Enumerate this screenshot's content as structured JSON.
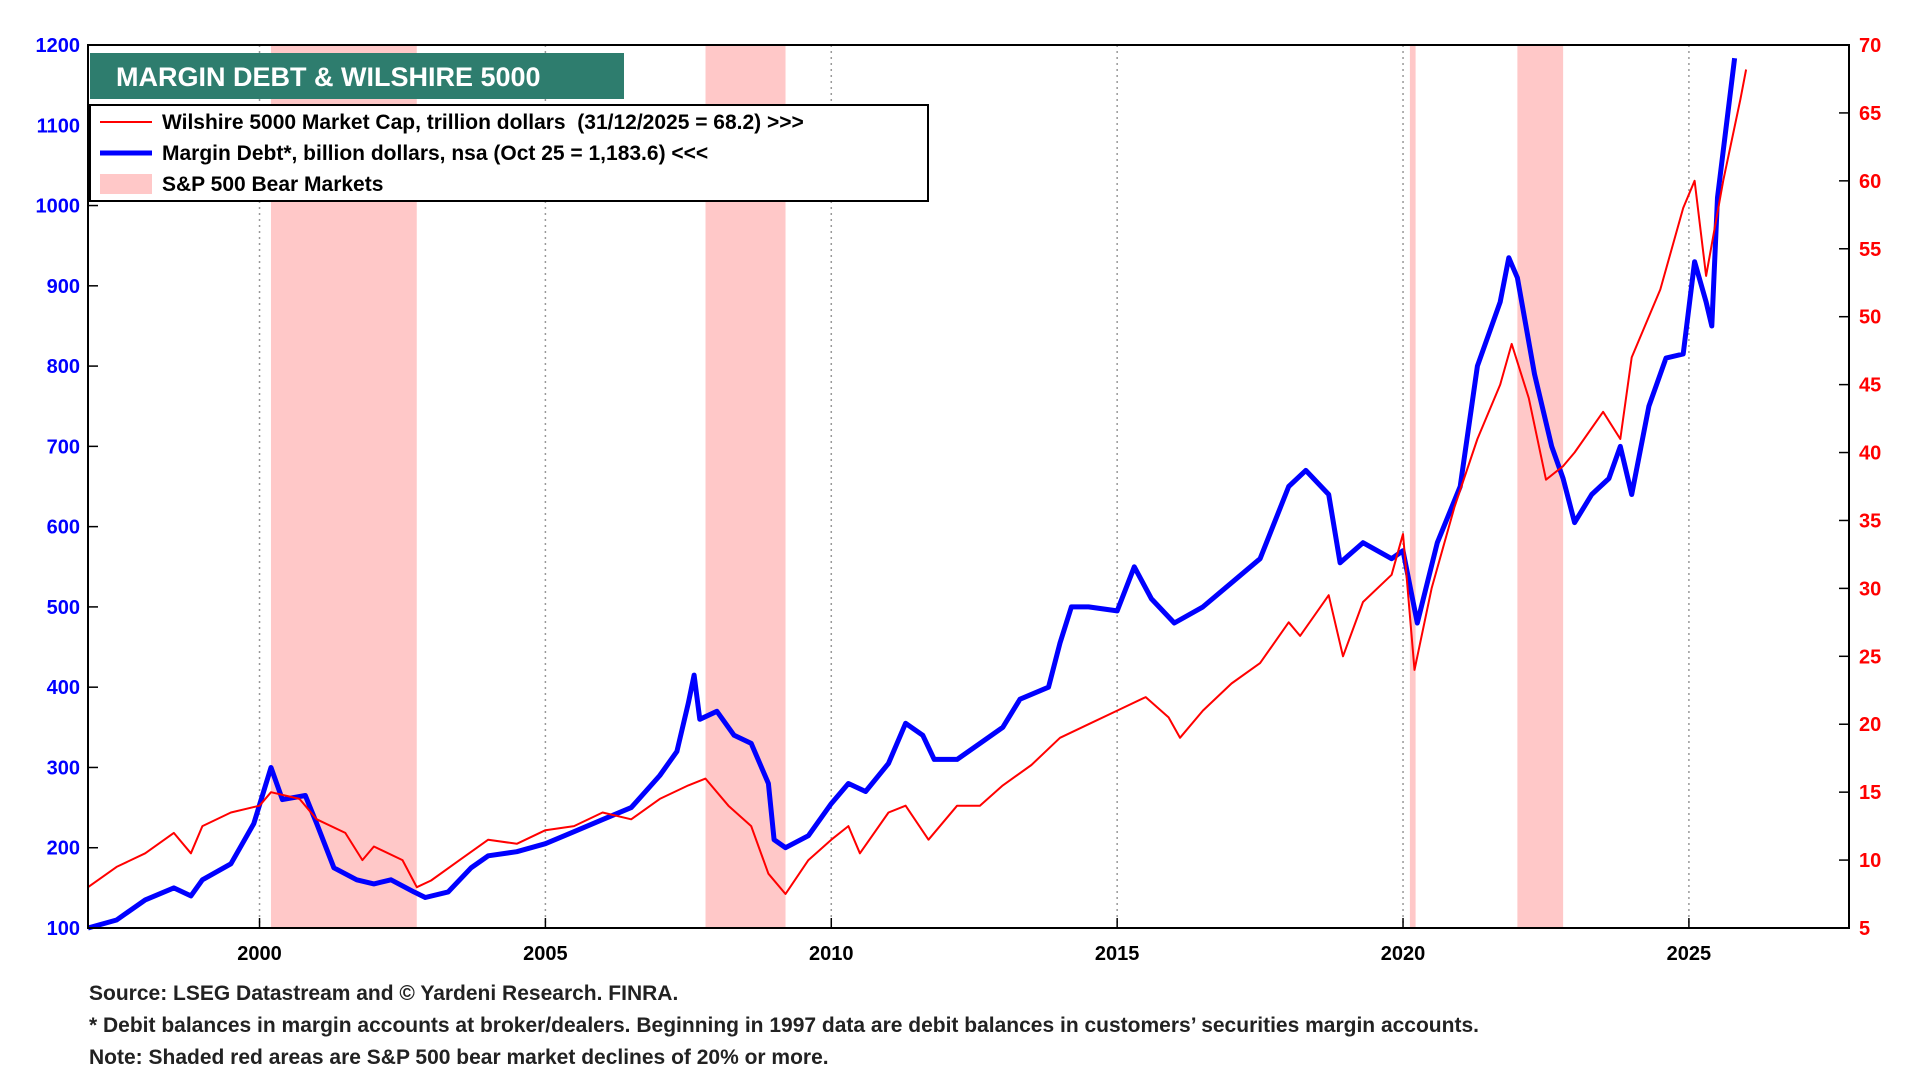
{
  "chart_data": {
    "type": "line",
    "title": "MARGIN DEBT & WILSHIRE 5000",
    "xlim": [
      1997,
      2027.8
    ],
    "xticks": [
      2000,
      2005,
      2010,
      2015,
      2020,
      2025
    ],
    "ylim": [
      100,
      1200
    ],
    "yticks": [
      100,
      200,
      300,
      400,
      500,
      600,
      700,
      800,
      900,
      1000,
      1100,
      1200
    ],
    "y2lim": [
      5,
      70
    ],
    "y2ticks": [
      5,
      10,
      15,
      20,
      25,
      30,
      35,
      40,
      45,
      50,
      55,
      60,
      65,
      70
    ],
    "grid": "x",
    "bear_markets": {
      "name": "S&P 500 Bear Markets",
      "color": "#ffc8c8",
      "ranges": [
        [
          2000.2,
          2002.75
        ],
        [
          2007.8,
          2009.2
        ],
        [
          2020.12,
          2020.22
        ],
        [
          2022.0,
          2022.8
        ]
      ]
    },
    "series": [
      {
        "name": "Wilshire 5000 Market Cap, trillion dollars  (31/12/2025 = 68.2) >>>",
        "color": "#ff0000",
        "axis": "y2",
        "x": [
          1997.0,
          1997.5,
          1998.0,
          1998.5,
          1998.8,
          1999.0,
          1999.5,
          2000.0,
          2000.2,
          2000.7,
          2001.0,
          2001.5,
          2001.8,
          2002.0,
          2002.5,
          2002.75,
          2003.0,
          2003.5,
          2004.0,
          2004.5,
          2005.0,
          2005.5,
          2006.0,
          2006.5,
          2007.0,
          2007.5,
          2007.8,
          2008.2,
          2008.6,
          2008.9,
          2009.2,
          2009.6,
          2010.0,
          2010.3,
          2010.5,
          2011.0,
          2011.3,
          2011.7,
          2012.2,
          2012.6,
          2013.0,
          2013.5,
          2014.0,
          2014.5,
          2015.0,
          2015.5,
          2015.9,
          2016.1,
          2016.5,
          2017.0,
          2017.5,
          2018.0,
          2018.2,
          2018.7,
          2018.95,
          2019.3,
          2019.8,
          2020.0,
          2020.2,
          2020.5,
          2020.9,
          2021.3,
          2021.7,
          2021.9,
          2022.2,
          2022.5,
          2022.8,
          2023.0,
          2023.5,
          2023.8,
          2024.0,
          2024.5,
          2024.9,
          2025.1,
          2025.3,
          2025.6,
          2025.9,
          2026.0
        ],
        "values": [
          8,
          9.5,
          10.5,
          12,
          10.5,
          12.5,
          13.5,
          14,
          15,
          14.5,
          13,
          12,
          10,
          11,
          10,
          8,
          8.5,
          10,
          11.5,
          11.2,
          12.2,
          12.5,
          13.5,
          13,
          14.5,
          15.5,
          16,
          14,
          12.5,
          9,
          7.5,
          10,
          11.5,
          12.5,
          10.5,
          13.5,
          14,
          11.5,
          14,
          14,
          15.5,
          17,
          19,
          20,
          21,
          22,
          20.5,
          19,
          21,
          23,
          24.5,
          27.5,
          26.5,
          29.5,
          25,
          29,
          31,
          34,
          24,
          30,
          36,
          41,
          45,
          48,
          44,
          38,
          39,
          40,
          43,
          41,
          47,
          52,
          58,
          60,
          53,
          60,
          66,
          68.2
        ]
      },
      {
        "name": "Margin Debt*, billion dollars, nsa (Oct 25 = 1,183.6) <<<",
        "color": "#0000ff",
        "x": [
          1997.0,
          1997.5,
          1998.0,
          1998.5,
          1998.8,
          1999.0,
          1999.5,
          1999.9,
          2000.2,
          2000.4,
          2000.8,
          2001.0,
          2001.3,
          2001.7,
          2002.0,
          2002.3,
          2002.7,
          2002.9,
          2003.3,
          2003.7,
          2004.0,
          2004.5,
          2005.0,
          2005.5,
          2006.0,
          2006.5,
          2007.0,
          2007.3,
          2007.5,
          2007.6,
          2007.7,
          2008.0,
          2008.3,
          2008.6,
          2008.9,
          2009.0,
          2009.2,
          2009.6,
          2010.0,
          2010.3,
          2010.6,
          2011.0,
          2011.3,
          2011.6,
          2011.8,
          2012.2,
          2012.6,
          2013.0,
          2013.3,
          2013.8,
          2014.0,
          2014.2,
          2014.5,
          2015.0,
          2015.3,
          2015.6,
          2016.0,
          2016.5,
          2017.0,
          2017.5,
          2018.0,
          2018.3,
          2018.7,
          2018.9,
          2019.3,
          2019.8,
          2020.0,
          2020.25,
          2020.6,
          2021.0,
          2021.3,
          2021.7,
          2021.85,
          2022.0,
          2022.3,
          2022.6,
          2022.8,
          2023.0,
          2023.3,
          2023.6,
          2023.8,
          2024.0,
          2024.3,
          2024.6,
          2024.9,
          2025.1,
          2025.3,
          2025.4,
          2025.5,
          2025.8
        ],
        "values": [
          100,
          110,
          135,
          150,
          140,
          160,
          180,
          230,
          300,
          260,
          265,
          230,
          175,
          160,
          155,
          160,
          145,
          138,
          145,
          175,
          190,
          195,
          205,
          220,
          235,
          250,
          290,
          320,
          380,
          415,
          360,
          370,
          340,
          330,
          280,
          210,
          200,
          215,
          255,
          280,
          270,
          305,
          355,
          340,
          310,
          310,
          330,
          350,
          385,
          400,
          455,
          500,
          500,
          495,
          550,
          510,
          480,
          500,
          530,
          560,
          650,
          670,
          640,
          555,
          580,
          560,
          570,
          480,
          580,
          650,
          800,
          880,
          935,
          910,
          790,
          700,
          660,
          605,
          640,
          660,
          700,
          640,
          750,
          810,
          815,
          930,
          880,
          850,
          1010,
          1183.6
        ]
      }
    ],
    "notes": [
      "Source: LSEG Datastream and © Yardeni Research. FINRA.",
      "* Debit balances in margin accounts at broker/dealers. Beginning in 1997 data are debit balances in customers’ securities margin accounts.",
      "Note: Shaded red areas are S&P 500 bear market declines of 20% or more."
    ]
  }
}
